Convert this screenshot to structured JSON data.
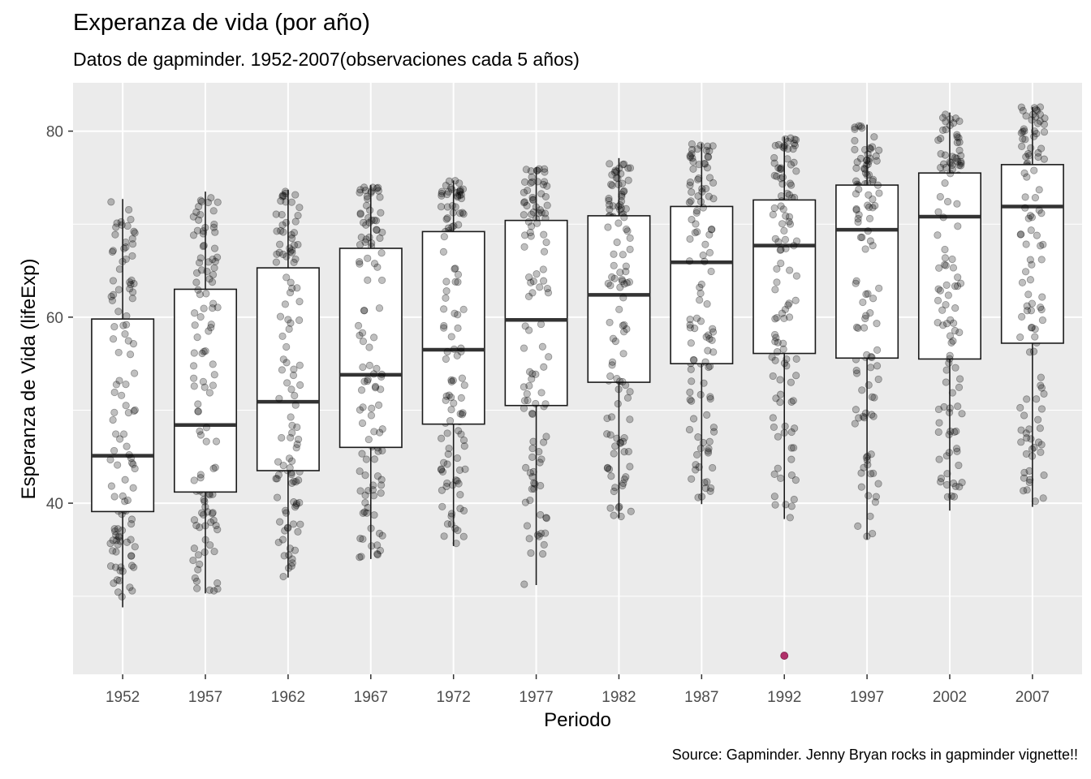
{
  "chart_data": {
    "type": "boxplot",
    "title": "Experanza de vida (por año)",
    "subtitle": "Datos de gapminder. 1952-2007(observaciones cada 5 años)",
    "caption": "Source: Gapminder. Jenny Bryan rocks in gapminder vignette!!",
    "xlabel": "Periodo",
    "ylabel": "Esperanza de Vida (lifeExp)",
    "categories": [
      "1952",
      "1957",
      "1962",
      "1967",
      "1972",
      "1977",
      "1982",
      "1987",
      "1992",
      "1997",
      "2002",
      "2007"
    ],
    "yticks": [
      40,
      60,
      80
    ],
    "ylim": [
      21.6,
      85.2
    ],
    "boxes": [
      {
        "year": "1952",
        "min": 28.8,
        "q1": 39.1,
        "median": 45.1,
        "q3": 59.8,
        "max": 72.7
      },
      {
        "year": "1957",
        "min": 30.3,
        "q1": 41.2,
        "median": 48.4,
        "q3": 63.0,
        "max": 73.5
      },
      {
        "year": "1962",
        "min": 32.0,
        "q1": 43.5,
        "median": 50.9,
        "q3": 65.3,
        "max": 73.7
      },
      {
        "year": "1967",
        "min": 34.0,
        "q1": 46.0,
        "median": 53.8,
        "q3": 67.4,
        "max": 74.2
      },
      {
        "year": "1972",
        "min": 35.4,
        "q1": 48.5,
        "median": 56.5,
        "q3": 69.2,
        "max": 74.7
      },
      {
        "year": "1977",
        "min": 31.2,
        "q1": 50.5,
        "median": 59.7,
        "q3": 70.4,
        "max": 76.1
      },
      {
        "year": "1982",
        "min": 38.4,
        "q1": 53.0,
        "median": 62.4,
        "q3": 70.9,
        "max": 77.1
      },
      {
        "year": "1987",
        "min": 39.9,
        "q1": 55.0,
        "median": 65.9,
        "q3": 71.9,
        "max": 78.7
      },
      {
        "year": "1992",
        "min": 38.3,
        "q1": 56.1,
        "median": 67.7,
        "q3": 72.6,
        "max": 79.4
      },
      {
        "year": "1997",
        "min": 36.1,
        "q1": 55.6,
        "median": 69.4,
        "q3": 74.2,
        "max": 80.7
      },
      {
        "year": "2002",
        "min": 39.2,
        "q1": 55.5,
        "median": 70.8,
        "q3": 75.5,
        "max": 82.0
      },
      {
        "year": "2007",
        "min": 39.6,
        "q1": 57.2,
        "median": 71.9,
        "q3": 76.4,
        "max": 82.6
      }
    ],
    "outliers": [
      {
        "year": "1992",
        "value": 23.6,
        "color": "#b0306a"
      }
    ],
    "point_color": "#000000",
    "point_alpha": 0.25,
    "panel_background": "#ebebeb",
    "grid": true
  }
}
